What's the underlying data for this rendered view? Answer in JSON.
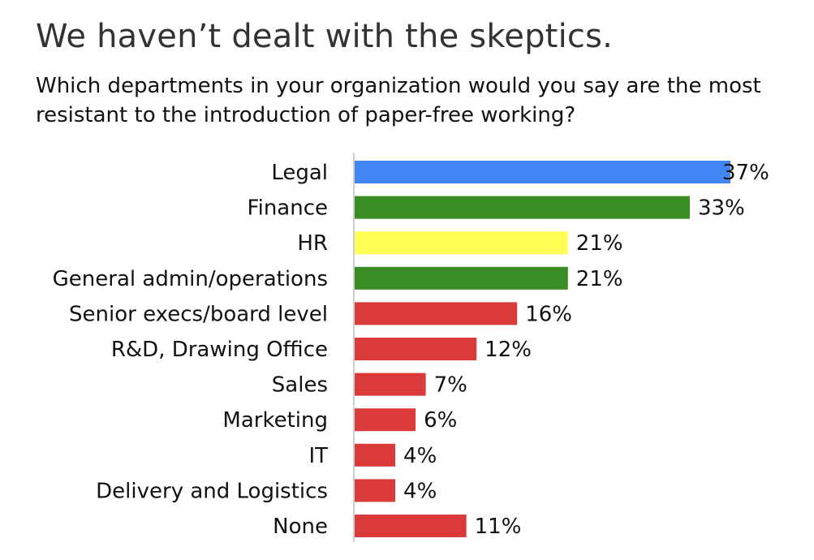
{
  "header": {
    "title": "We haven’t dealt with the skeptics.",
    "subtitle": "Which departments in your organization would you say are the most resistant to the introduction of paper-free working?"
  },
  "chart_data": {
    "type": "bar",
    "orientation": "horizontal",
    "title": "We haven’t dealt with the skeptics.",
    "subtitle": "Which departments in your organization would you say are the most resistant to the introduction of paper-free working?",
    "categories": [
      "Legal",
      "Finance",
      "HR",
      "General admin/operations",
      "Senior execs/board level",
      "R&D, Drawing Office",
      "Sales",
      "Marketing",
      "IT",
      "Delivery and Logistics",
      "None"
    ],
    "values": [
      37,
      33,
      21,
      21,
      16,
      12,
      7,
      6,
      4,
      4,
      11
    ],
    "value_labels": [
      "37%",
      "33%",
      "21%",
      "21%",
      "16%",
      "12%",
      "7%",
      "6%",
      "4%",
      "4%",
      "11%"
    ],
    "colors": [
      "#4285f4",
      "#3a8c24",
      "#ffff55",
      "#3a8c24",
      "#db3a3a",
      "#db3a3a",
      "#db3a3a",
      "#db3a3a",
      "#db3a3a",
      "#db3a3a",
      "#db3a3a"
    ],
    "axis_color": "#bfbfbf",
    "xlim": [
      0,
      37
    ],
    "grid": false,
    "legend": "none"
  }
}
